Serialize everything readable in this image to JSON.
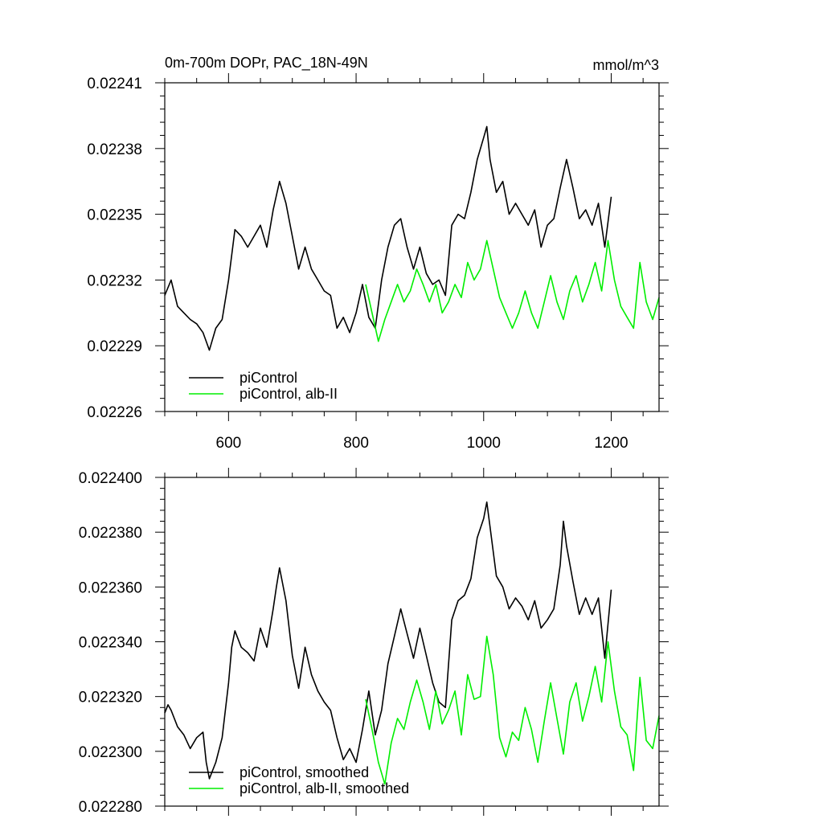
{
  "chart_data": [
    {
      "type": "line",
      "title": "0m-700m DOPr, PAC_18N-49N",
      "units": "mmol/m^3",
      "xlim": [
        500,
        1275
      ],
      "ylim": [
        0.02226,
        0.02241
      ],
      "x_ticks": [
        600,
        800,
        1000,
        1200
      ],
      "x_tick_labels": [
        "600",
        "800",
        "1000",
        "1200"
      ],
      "y_ticks": [
        0.02226,
        0.02229,
        0.02232,
        0.02235,
        0.02238,
        0.02241
      ],
      "y_tick_labels": [
        "0.02226",
        "0.02229",
        "0.02232",
        "0.02235",
        "0.02238",
        "0.02241"
      ],
      "legend": [
        {
          "name": "piControl",
          "color": "#000000"
        },
        {
          "name": "piControl, alb-II",
          "color": "#00ee00"
        }
      ],
      "series": [
        {
          "name": "piControl",
          "color": "#000000",
          "x": [
            500,
            510,
            520,
            530,
            540,
            550,
            560,
            570,
            580,
            590,
            600,
            610,
            620,
            630,
            640,
            650,
            660,
            670,
            680,
            690,
            700,
            710,
            720,
            730,
            740,
            750,
            760,
            770,
            780,
            790,
            800,
            810,
            820,
            830,
            840,
            850,
            860,
            870,
            880,
            890,
            900,
            910,
            920,
            930,
            940,
            950,
            960,
            970,
            980,
            990,
            1000,
            1005,
            1010,
            1020,
            1030,
            1040,
            1050,
            1060,
            1070,
            1080,
            1090,
            1100,
            1110,
            1120,
            1130,
            1140,
            1150,
            1160,
            1170,
            1180,
            1190,
            1200
          ],
          "y": [
            0.022313,
            0.02232,
            0.022308,
            0.022305,
            0.022302,
            0.0223,
            0.022296,
            0.022288,
            0.022298,
            0.022302,
            0.02232,
            0.022343,
            0.02234,
            0.022335,
            0.02234,
            0.022345,
            0.022335,
            0.022352,
            0.022365,
            0.022355,
            0.02234,
            0.022325,
            0.022335,
            0.022325,
            0.02232,
            0.022315,
            0.022313,
            0.022298,
            0.022303,
            0.022296,
            0.022305,
            0.022318,
            0.022303,
            0.022298,
            0.02232,
            0.022335,
            0.022345,
            0.022348,
            0.022335,
            0.022325,
            0.022335,
            0.022323,
            0.022318,
            0.02232,
            0.022313,
            0.022345,
            0.02235,
            0.022348,
            0.02236,
            0.022375,
            0.022385,
            0.02239,
            0.022375,
            0.02236,
            0.022365,
            0.02235,
            0.022355,
            0.02235,
            0.022345,
            0.022352,
            0.022335,
            0.022345,
            0.022348,
            0.022362,
            0.022375,
            0.022362,
            0.022348,
            0.022352,
            0.022345,
            0.022355,
            0.022335,
            0.022358
          ]
        },
        {
          "name": "piControl, alb-II",
          "color": "#00ee00",
          "x": [
            815,
            825,
            835,
            845,
            855,
            865,
            875,
            885,
            895,
            905,
            915,
            925,
            935,
            945,
            955,
            965,
            975,
            985,
            995,
            1005,
            1015,
            1025,
            1035,
            1045,
            1055,
            1065,
            1075,
            1085,
            1095,
            1105,
            1115,
            1125,
            1135,
            1145,
            1155,
            1165,
            1175,
            1185,
            1195,
            1205,
            1215,
            1225,
            1235,
            1245,
            1255,
            1265,
            1275
          ],
          "y": [
            0.022318,
            0.022305,
            0.022292,
            0.022302,
            0.02231,
            0.022318,
            0.02231,
            0.022315,
            0.022325,
            0.022318,
            0.02231,
            0.022318,
            0.022305,
            0.02231,
            0.022318,
            0.022312,
            0.022328,
            0.02232,
            0.022325,
            0.022338,
            0.022325,
            0.022312,
            0.022305,
            0.022298,
            0.022305,
            0.022315,
            0.022305,
            0.022298,
            0.02231,
            0.022322,
            0.02231,
            0.022302,
            0.022315,
            0.022322,
            0.02231,
            0.022318,
            0.022328,
            0.022315,
            0.022338,
            0.02232,
            0.022308,
            0.022303,
            0.022298,
            0.022328,
            0.02231,
            0.022302,
            0.022312
          ]
        }
      ]
    },
    {
      "type": "line",
      "title": "",
      "units": "",
      "xlim": [
        500,
        1275
      ],
      "ylim": [
        0.02228,
        0.0224
      ],
      "x_ticks": [
        600,
        800,
        1000,
        1200
      ],
      "x_tick_labels": [],
      "y_ticks": [
        0.02228,
        0.0223,
        0.02232,
        0.02234,
        0.02236,
        0.02238,
        0.0224
      ],
      "y_tick_labels": [
        "0.022280",
        "0.022300",
        "0.022320",
        "0.022340",
        "0.022360",
        "0.022380",
        "0.022400"
      ],
      "legend": [
        {
          "name": "piControl, smoothed",
          "color": "#000000"
        },
        {
          "name": "piControl, alb-II, smoothed",
          "color": "#00ee00"
        }
      ],
      "series": [
        {
          "name": "piControl, smoothed",
          "color": "#000000",
          "x": [
            500,
            505,
            510,
            520,
            530,
            540,
            550,
            560,
            565,
            570,
            580,
            590,
            600,
            605,
            610,
            620,
            630,
            640,
            650,
            660,
            670,
            675,
            680,
            690,
            700,
            710,
            720,
            730,
            740,
            750,
            760,
            770,
            780,
            790,
            800,
            810,
            820,
            830,
            840,
            850,
            860,
            870,
            880,
            890,
            900,
            910,
            920,
            930,
            940,
            950,
            960,
            970,
            980,
            990,
            1000,
            1005,
            1010,
            1020,
            1030,
            1040,
            1050,
            1060,
            1070,
            1080,
            1090,
            1100,
            1110,
            1120,
            1125,
            1130,
            1140,
            1150,
            1160,
            1170,
            1180,
            1190,
            1200
          ],
          "y": [
            0.022314,
            0.022317,
            0.022315,
            0.022309,
            0.022306,
            0.022301,
            0.022305,
            0.022307,
            0.022296,
            0.02229,
            0.022296,
            0.022305,
            0.022325,
            0.022338,
            0.022344,
            0.022338,
            0.022336,
            0.022333,
            0.022345,
            0.022338,
            0.022352,
            0.02236,
            0.022367,
            0.022355,
            0.022335,
            0.022323,
            0.022338,
            0.022328,
            0.022322,
            0.022318,
            0.022315,
            0.022305,
            0.022297,
            0.022301,
            0.022296,
            0.022308,
            0.022322,
            0.022306,
            0.022315,
            0.022332,
            0.022342,
            0.022352,
            0.022343,
            0.022334,
            0.022345,
            0.022335,
            0.022325,
            0.022318,
            0.022316,
            0.022348,
            0.022355,
            0.022357,
            0.022363,
            0.022378,
            0.022385,
            0.022391,
            0.022382,
            0.022364,
            0.02236,
            0.022352,
            0.022356,
            0.022353,
            0.022348,
            0.022355,
            0.022345,
            0.022348,
            0.022352,
            0.022368,
            0.022384,
            0.022375,
            0.022362,
            0.02235,
            0.022356,
            0.02235,
            0.022356,
            0.022334,
            0.022359
          ]
        },
        {
          "name": "piControl, alb-II, smoothed",
          "color": "#00ee00",
          "x": [
            815,
            825,
            835,
            845,
            855,
            865,
            875,
            885,
            895,
            905,
            915,
            925,
            935,
            945,
            955,
            965,
            975,
            985,
            995,
            1005,
            1015,
            1025,
            1035,
            1045,
            1055,
            1065,
            1075,
            1085,
            1095,
            1105,
            1115,
            1125,
            1135,
            1145,
            1155,
            1165,
            1175,
            1185,
            1195,
            1205,
            1215,
            1225,
            1235,
            1245,
            1255,
            1265,
            1275
          ],
          "y": [
            0.022319,
            0.022308,
            0.022296,
            0.022288,
            0.022303,
            0.022312,
            0.022308,
            0.022318,
            0.022326,
            0.022318,
            0.022308,
            0.022322,
            0.02231,
            0.022315,
            0.022322,
            0.022306,
            0.022328,
            0.022319,
            0.02232,
            0.022342,
            0.022328,
            0.022305,
            0.022298,
            0.022307,
            0.022304,
            0.022316,
            0.022308,
            0.022296,
            0.022311,
            0.022325,
            0.022312,
            0.022299,
            0.022318,
            0.022325,
            0.022311,
            0.02232,
            0.022331,
            0.022318,
            0.02234,
            0.022322,
            0.022309,
            0.022306,
            0.022293,
            0.022327,
            0.022304,
            0.022301,
            0.022313
          ]
        }
      ]
    }
  ]
}
